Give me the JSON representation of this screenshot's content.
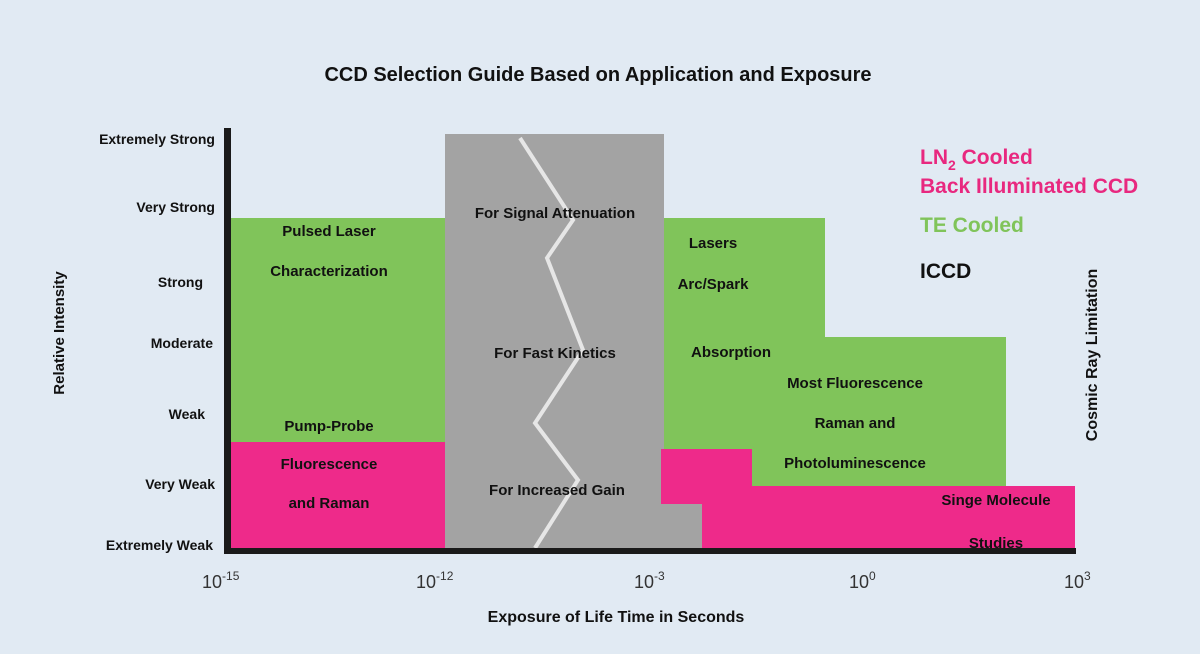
{
  "title": "CCD Selection Guide Based on Application and Exposure",
  "y_axis": {
    "label": "Relative Intensity",
    "ticks": [
      "Extremely Strong",
      "Very Strong",
      "Strong",
      "Moderate",
      "Weak",
      "Very Weak",
      "Extremely Weak"
    ]
  },
  "x_axis": {
    "label": "Exposure of Life Time in Seconds",
    "ticks": [
      {
        "base": "10",
        "exp": "-15"
      },
      {
        "base": "10",
        "exp": "-12"
      },
      {
        "base": "10",
        "exp": "-3"
      },
      {
        "base": "10",
        "exp": "0"
      },
      {
        "base": "10",
        "exp": "3"
      }
    ]
  },
  "legend": {
    "ln2_line1_a": "LN",
    "ln2_line1_sub": "2",
    "ln2_line1_b": " Cooled",
    "ln2_line2": "Back Illuminated CCD",
    "te": "TE Cooled",
    "iccd": "ICCD"
  },
  "colors": {
    "ln2": "#ee2a8a",
    "te": "#80c45a",
    "iccd": "#a3a3a3",
    "background": "#e1eaf3",
    "legend_te": "#80c45a"
  },
  "regions": {
    "te_left": [
      "Pulsed Laser",
      "Characterization",
      "Pump-Probe"
    ],
    "ln2_left": [
      "Fluorescence",
      "and Raman"
    ],
    "iccd": [
      "For Signal Attenuation",
      "For Fast Kinetics",
      "For Increased Gain"
    ],
    "te_right": [
      "Lasers",
      "Arc/Spark",
      "Absorption",
      "Most Fluorescence",
      "Raman and",
      "Photoluminescence"
    ],
    "ln2_right": [
      "Singe Molecule",
      "Studies"
    ]
  },
  "limit_label": "Cosmic Ray Limitation"
}
